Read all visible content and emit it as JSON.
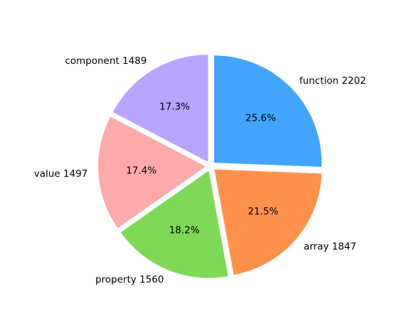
{
  "chart_data": {
    "type": "pie",
    "title": "",
    "start_angle_deg": 90,
    "counterclockwise": false,
    "explode": true,
    "slices": [
      {
        "name": "function",
        "value": 2202,
        "label": "function 2202",
        "percent": "25.6%",
        "color": "#42a5ff"
      },
      {
        "name": "array",
        "value": 1847,
        "label": "array 1847",
        "percent": "21.5%",
        "color": "#ff914d"
      },
      {
        "name": "property",
        "value": 1560,
        "label": "property 1560",
        "percent": "18.2%",
        "color": "#7ed957"
      },
      {
        "name": "value",
        "value": 1497,
        "label": "value 1497",
        "percent": "17.4%",
        "color": "#ffaaaa"
      },
      {
        "name": "component",
        "value": 1489,
        "label": "component 1489",
        "percent": "17.3%",
        "color": "#b8a5ff"
      }
    ]
  }
}
